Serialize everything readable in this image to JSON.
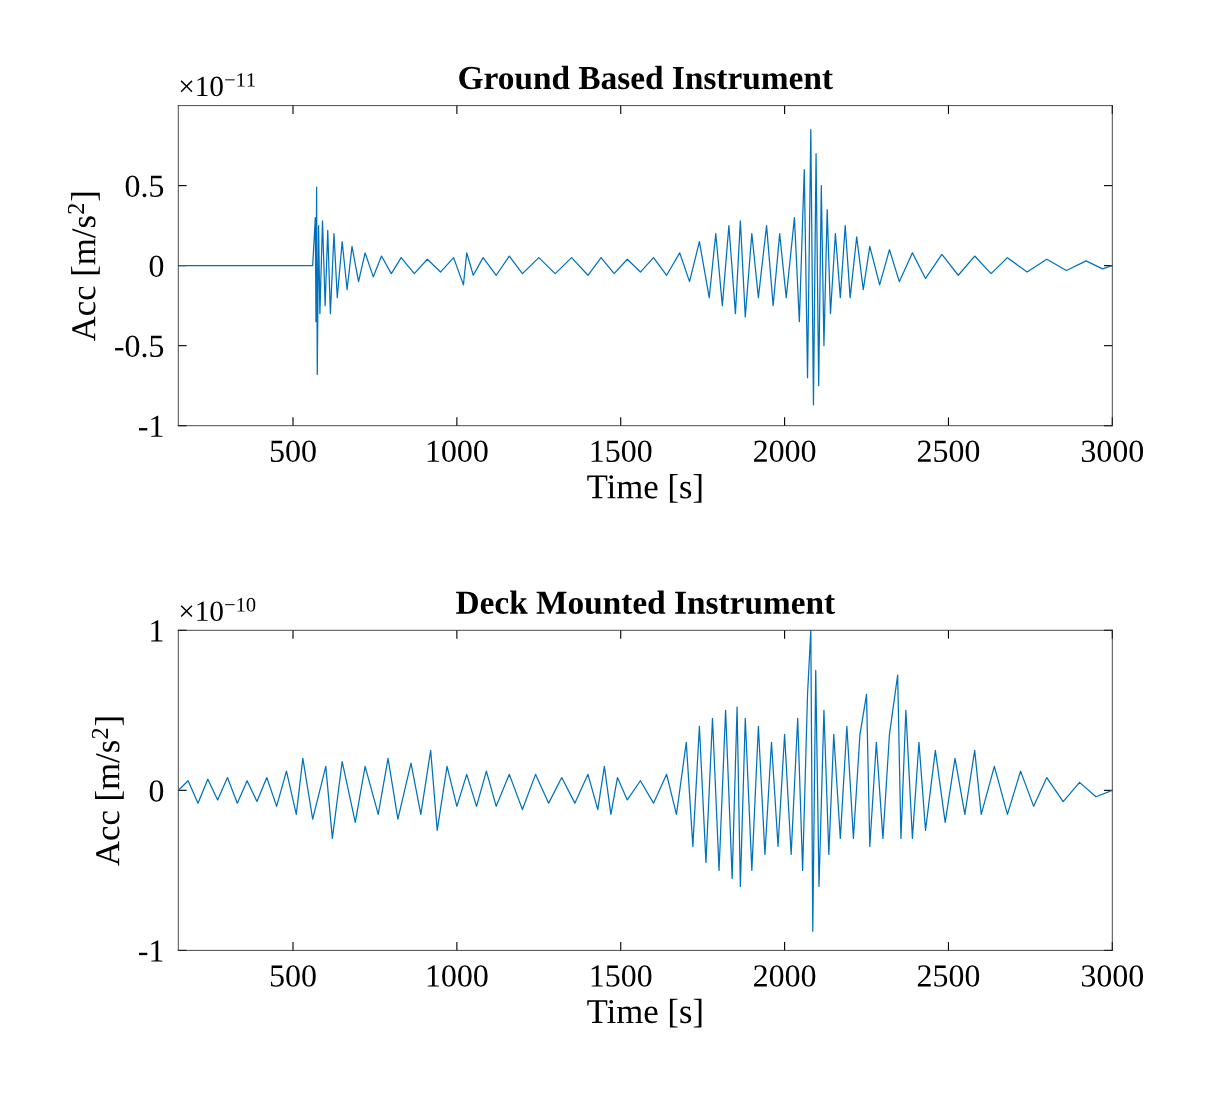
{
  "chart_data": [
    {
      "type": "line",
      "title": "Ground Based Instrument",
      "xlabel": "Time [s]",
      "ylabel": "Acc [m/s$^{2}$]",
      "annotations": [
        "×10$^{−11}$"
      ],
      "xlim": [
        150,
        3000
      ],
      "ylim": [
        -1,
        1
      ],
      "xticks": [
        500,
        1000,
        1500,
        2000,
        2500,
        3000
      ],
      "yticks": [
        -1,
        -0.5,
        0,
        0.5
      ],
      "x": [
        150,
        560,
        568,
        570,
        572,
        574,
        578,
        582,
        590,
        598,
        606,
        614,
        625,
        635,
        650,
        665,
        680,
        700,
        720,
        745,
        770,
        800,
        830,
        870,
        910,
        950,
        990,
        1020,
        1030,
        1050,
        1080,
        1120,
        1160,
        1200,
        1250,
        1300,
        1350,
        1400,
        1440,
        1480,
        1520,
        1560,
        1600,
        1640,
        1680,
        1710,
        1740,
        1770,
        1790,
        1810,
        1830,
        1850,
        1865,
        1880,
        1900,
        1920,
        1945,
        1965,
        1985,
        2005,
        2030,
        2045,
        2060,
        2070,
        2080,
        2088,
        2096,
        2104,
        2112,
        2120,
        2130,
        2140,
        2155,
        2170,
        2185,
        2200,
        2220,
        2240,
        2260,
        2290,
        2320,
        2350,
        2390,
        2430,
        2480,
        2530,
        2580,
        2630,
        2680,
        2740,
        2800,
        2860,
        2920,
        2970,
        3000
      ],
      "series": [
        {
          "color": "#0072bd",
          "values": [
            0,
            0,
            0.3,
            -0.35,
            0.49,
            -0.68,
            0.25,
            -0.3,
            0.28,
            -0.25,
            0.22,
            -0.3,
            0.2,
            -0.2,
            0.15,
            -0.15,
            0.12,
            -0.1,
            0.08,
            -0.07,
            0.06,
            -0.05,
            0.05,
            -0.05,
            0.04,
            -0.04,
            0.05,
            -0.12,
            0.08,
            -0.06,
            0.05,
            -0.06,
            0.06,
            -0.05,
            0.05,
            -0.05,
            0.05,
            -0.06,
            0.05,
            -0.05,
            0.04,
            -0.04,
            0.05,
            -0.06,
            0.08,
            -0.1,
            0.15,
            -0.2,
            0.2,
            -0.25,
            0.25,
            -0.3,
            0.28,
            -0.32,
            0.2,
            -0.2,
            0.25,
            -0.25,
            0.2,
            -0.2,
            0.3,
            -0.35,
            0.6,
            -0.7,
            0.85,
            -0.87,
            0.7,
            -0.75,
            0.5,
            -0.5,
            0.35,
            -0.3,
            0.2,
            -0.2,
            0.25,
            -0.2,
            0.18,
            -0.15,
            0.12,
            -0.12,
            0.1,
            -0.1,
            0.08,
            -0.08,
            0.07,
            -0.06,
            0.06,
            -0.05,
            0.05,
            -0.04,
            0.04,
            -0.03,
            0.03,
            -0.02,
            0
          ]
        }
      ]
    },
    {
      "type": "line",
      "title": "Deck Mounted Instrument",
      "xlabel": "Time [s]",
      "ylabel": "Acc [m/s$^{2}$]",
      "annotations": [
        "×10$^{−10}$"
      ],
      "xlim": [
        150,
        3000
      ],
      "ylim": [
        -1,
        1
      ],
      "xticks": [
        500,
        1000,
        1500,
        2000,
        2500,
        3000
      ],
      "yticks": [
        -1,
        0,
        1
      ],
      "x": [
        150,
        180,
        210,
        240,
        270,
        300,
        330,
        360,
        390,
        420,
        450,
        480,
        510,
        530,
        560,
        600,
        620,
        650,
        690,
        720,
        760,
        790,
        820,
        860,
        890,
        920,
        940,
        970,
        1000,
        1030,
        1060,
        1090,
        1120,
        1160,
        1200,
        1240,
        1280,
        1320,
        1360,
        1400,
        1430,
        1450,
        1470,
        1490,
        1520,
        1560,
        1600,
        1640,
        1670,
        1700,
        1720,
        1740,
        1760,
        1780,
        1800,
        1820,
        1840,
        1855,
        1865,
        1880,
        1900,
        1920,
        1940,
        1960,
        1980,
        2000,
        2020,
        2040,
        2055,
        2070,
        2080,
        2086,
        2095,
        2105,
        2120,
        2135,
        2150,
        2170,
        2190,
        2210,
        2230,
        2250,
        2260,
        2280,
        2300,
        2320,
        2345,
        2355,
        2370,
        2390,
        2410,
        2430,
        2460,
        2490,
        2520,
        2550,
        2580,
        2600,
        2640,
        2680,
        2720,
        2760,
        2800,
        2850,
        2900,
        2950,
        3000
      ],
      "series": [
        {
          "color": "#0072bd",
          "values": [
            0,
            0.06,
            -0.08,
            0.07,
            -0.06,
            0.08,
            -0.08,
            0.06,
            -0.07,
            0.08,
            -0.1,
            0.12,
            -0.15,
            0.2,
            -0.18,
            0.15,
            -0.3,
            0.18,
            -0.2,
            0.15,
            -0.15,
            0.2,
            -0.18,
            0.17,
            -0.15,
            0.25,
            -0.25,
            0.15,
            -0.1,
            0.1,
            -0.1,
            0.12,
            -0.1,
            0.1,
            -0.12,
            0.1,
            -0.08,
            0.08,
            -0.08,
            0.1,
            -0.12,
            0.15,
            -0.15,
            0.08,
            -0.06,
            0.06,
            -0.08,
            0.1,
            -0.15,
            0.3,
            -0.35,
            0.4,
            -0.45,
            0.45,
            -0.5,
            0.5,
            -0.55,
            0.52,
            -0.6,
            0.45,
            -0.5,
            0.4,
            -0.4,
            0.3,
            -0.35,
            0.35,
            -0.4,
            0.45,
            -0.5,
            0.6,
            1.0,
            -0.88,
            0.75,
            -0.6,
            0.5,
            -0.4,
            0.35,
            -0.3,
            0.4,
            -0.3,
            0.35,
            0.6,
            -0.35,
            0.3,
            -0.3,
            0.35,
            0.72,
            -0.3,
            0.5,
            -0.3,
            0.3,
            -0.25,
            0.25,
            -0.2,
            0.2,
            -0.15,
            0.25,
            -0.15,
            0.15,
            -0.15,
            0.12,
            -0.1,
            0.08,
            -0.07,
            0.05,
            -0.04,
            0
          ]
        }
      ]
    }
  ]
}
